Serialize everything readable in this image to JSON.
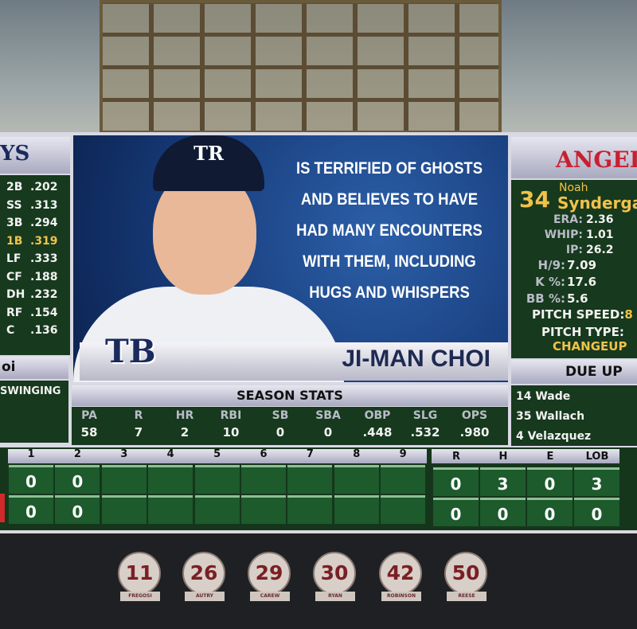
{
  "left_panel": {
    "team_logo_partial": "YS",
    "lineup": [
      {
        "pos": "2B",
        "avg": ".202"
      },
      {
        "pos": "SS",
        "avg": ".313"
      },
      {
        "pos": "3B",
        "avg": ".294"
      },
      {
        "pos": "1B",
        "avg": ".319",
        "highlight": true
      },
      {
        "pos": "LF",
        "avg": ".333"
      },
      {
        "pos": "CF",
        "avg": ".188"
      },
      {
        "pos": "DH",
        "avg": ".232"
      },
      {
        "pos": "RF",
        "avg": ".154"
      },
      {
        "pos": "C",
        "avg": ".136"
      }
    ],
    "batter_partial": "oi",
    "last_pitch": "SWINGING"
  },
  "feature": {
    "team_logo": "TB",
    "cap_logo": "TR",
    "quote": "Is terrified of ghosts and believes to have had many encounters with them, including hugs and whispers",
    "player_name": "JI-MAN CHOI"
  },
  "season_stats": {
    "title": "SEASON STATS",
    "headers": [
      "PA",
      "R",
      "HR",
      "RBI",
      "SB",
      "SBA",
      "OBP",
      "SLG",
      "OPS"
    ],
    "values": [
      "58",
      "7",
      "2",
      "10",
      "0",
      "0",
      ".448",
      ".532",
      ".980"
    ]
  },
  "right_panel": {
    "team": "ANGEL",
    "pitcher": {
      "number": "34",
      "first": "Noah",
      "last": "Syndergaa"
    },
    "stats1": [
      {
        "label": "ERA:",
        "value": "2.36"
      },
      {
        "label": "WHIP:",
        "value": "1.01"
      },
      {
        "label": "IP:",
        "value": "26.2"
      }
    ],
    "stats2": [
      {
        "label": "H/9:",
        "value": "7.09"
      },
      {
        "label": "K %:",
        "value": "17.6"
      },
      {
        "label": "BB %:",
        "value": "5.6"
      }
    ],
    "pitch_speed_label": "PITCH SPEED:",
    "pitch_speed_partial": "8",
    "pitch_type_label": "PITCH TYPE:",
    "pitch_type": "CHANGEUP",
    "due_up_title": "DUE UP",
    "due_up": [
      "14 Wade",
      "35 Wallach",
      "4 Velazquez"
    ]
  },
  "linescore": {
    "innings": [
      "1",
      "2",
      "3",
      "4",
      "5",
      "6",
      "7",
      "8",
      "9"
    ],
    "totals_headers": [
      "R",
      "H",
      "E",
      "LOB"
    ],
    "rows": [
      {
        "innings": [
          "0",
          "0",
          "",
          "",
          "",
          "",
          "",
          "",
          ""
        ],
        "totals": [
          "0",
          "3",
          "0",
          "3"
        ]
      },
      {
        "innings": [
          "0",
          "0",
          "",
          "",
          "",
          "",
          "",
          "",
          ""
        ],
        "totals": [
          "0",
          "0",
          "0",
          "0"
        ]
      }
    ]
  },
  "retired_numbers": [
    {
      "number": "11",
      "name": "FREGOSI"
    },
    {
      "number": "26",
      "name": "AUTRY"
    },
    {
      "number": "29",
      "name": "CAREW"
    },
    {
      "number": "30",
      "name": "RYAN"
    },
    {
      "number": "42",
      "name": "ROBINSON"
    },
    {
      "number": "50",
      "name": "REESE"
    }
  ],
  "colors": {
    "board_green": "#17391d",
    "highlight": "#f0c24a",
    "angels_red": "#c8202f",
    "rays_navy": "#1b2a5c"
  }
}
